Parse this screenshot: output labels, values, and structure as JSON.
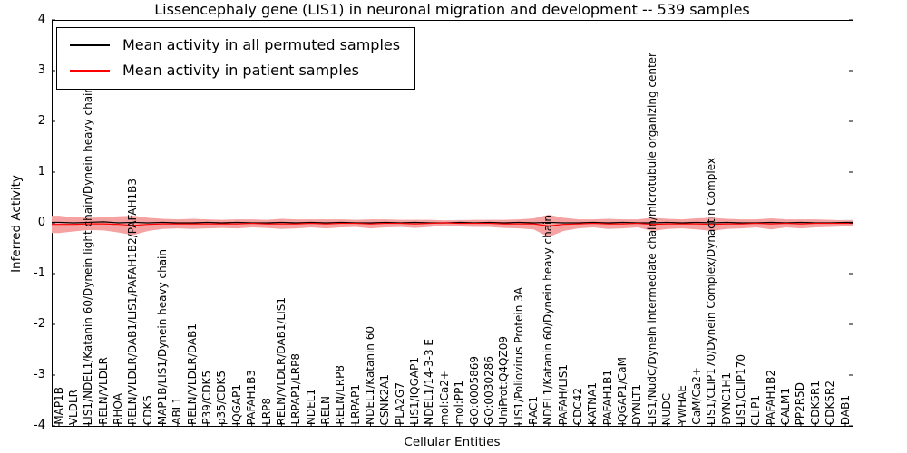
{
  "title": "Lissencephaly gene (LIS1) in neuronal migration and development -- 539 samples",
  "chart_data": {
    "type": "line",
    "title": "Lissencephaly gene (LIS1) in neuronal migration and development -- 539 samples",
    "xlabel": "Cellular Entities",
    "ylabel": "Inferred Activity",
    "ylim": [
      -4,
      4
    ],
    "yticks": [
      4,
      3,
      2,
      1,
      0,
      -1,
      -2,
      -3,
      -4
    ],
    "grid": false,
    "legend_position": "upper left",
    "categories": [
      "MAP1B",
      "VLDLR",
      "LIS1/NDEL1/Katanin 60/Dynein light chain/Dynein heavy chain",
      "RELN/VLDLR",
      "RHOA",
      "RELN/VLDLR/DAB1/LIS1/PAFAH1B2/PAFAH1B3",
      "CDK5",
      "MAP1B/LIS1/Dynein heavy chain",
      "ABL1",
      "RELN/VLDLR/DAB1",
      "P39/CDK5",
      "p35/CDK5",
      "IQGAP1",
      "PAFAH1B3",
      "LRP8",
      "RELN/VLDLR/DAB1/LIS1",
      "LRPAP1/LRP8",
      "NDEL1",
      "RELN",
      "RELN/LRP8",
      "LRPAP1",
      "NDEL1/Katanin 60",
      "CSNK2A1",
      "PLA2G7",
      "LIS1/IQGAP1",
      "NDEL1/14-3-3 E",
      "mol:Ca2+",
      "mol:PP1",
      "GO:0005869",
      "GO:0030286",
      "UniProt:Q4QZ09",
      "LIS1/Poliovirus Protein 3A",
      "RAC1",
      "NDEL1/Katanin 60/Dynein heavy chain",
      "PAFAH/LIS1",
      "CDC42",
      "KATNA1",
      "PAFAH1B1",
      "IQGAP1/CaM",
      "DYNLT1",
      "LIS1/NudC/Dynein intermediate chain/microtubule organizing center",
      "NUDC",
      "YWHAE",
      "CaM/Ca2+",
      "LIS1/CLIP170/Dynein Complex/Dynactin Complex",
      "DYNC1H1",
      "LIS1/CLIP170",
      "CLIP1",
      "PAFAH1B2",
      "CALM1",
      "PP2R5D",
      "CDK5R1",
      "CDK5R2",
      "DAB1"
    ],
    "series": [
      {
        "name": "Mean activity in all permuted samples",
        "color": "#000000",
        "band_color": "#d9d9d9",
        "band_halfwidth": 0.05,
        "values": [
          0.01,
          0,
          0.01,
          0.02,
          0,
          0.01,
          0,
          0.01,
          0,
          0,
          0.01,
          0,
          0.01,
          0,
          0,
          0.01,
          0,
          0.01,
          0,
          0.01,
          0,
          0,
          0.01,
          0,
          0.01,
          0,
          0,
          0.01,
          0,
          0.01,
          0,
          0.01,
          0,
          0.01,
          0,
          0,
          0.01,
          0,
          0.01,
          0,
          0,
          0.01,
          0,
          0.01,
          0,
          0.01,
          0,
          0,
          0.01,
          0,
          0.01,
          0,
          0,
          0.01
        ]
      },
      {
        "name": "Mean activity in patient samples",
        "color": "#ff0000",
        "band_color": "#f5a2a2",
        "band_halfwidth": [
          0.17,
          0.14,
          0.12,
          0.13,
          0.16,
          0.19,
          0.13,
          0.1,
          0.09,
          0.1,
          0.09,
          0.08,
          0.09,
          0.08,
          0.08,
          0.1,
          0.09,
          0.08,
          0.09,
          0.08,
          0.07,
          0.09,
          0.08,
          0.07,
          0.08,
          0.07,
          0.05,
          0.06,
          0.07,
          0.07,
          0.08,
          0.09,
          0.11,
          0.22,
          0.13,
          0.09,
          0.08,
          0.1,
          0.09,
          0.08,
          0.13,
          0.1,
          0.09,
          0.11,
          0.13,
          0.1,
          0.09,
          0.08,
          0.11,
          0.08,
          0.09,
          0.08,
          0.07,
          0.06
        ],
        "values": [
          -0.03,
          -0.03,
          -0.02,
          -0.02,
          -0.03,
          -0.05,
          -0.03,
          -0.02,
          -0.02,
          -0.02,
          -0.02,
          -0.02,
          -0.02,
          -0.01,
          -0.02,
          -0.02,
          -0.02,
          -0.01,
          -0.02,
          -0.01,
          -0.01,
          -0.02,
          -0.01,
          -0.01,
          -0.02,
          -0.01,
          0,
          -0.01,
          -0.01,
          -0.01,
          -0.02,
          -0.02,
          -0.02,
          -0.06,
          -0.03,
          -0.02,
          -0.01,
          -0.02,
          -0.02,
          -0.01,
          -0.03,
          -0.02,
          -0.02,
          -0.02,
          -0.03,
          -0.02,
          -0.02,
          -0.01,
          -0.02,
          -0.01,
          -0.02,
          -0.01,
          -0.01,
          -0.01
        ]
      }
    ]
  }
}
